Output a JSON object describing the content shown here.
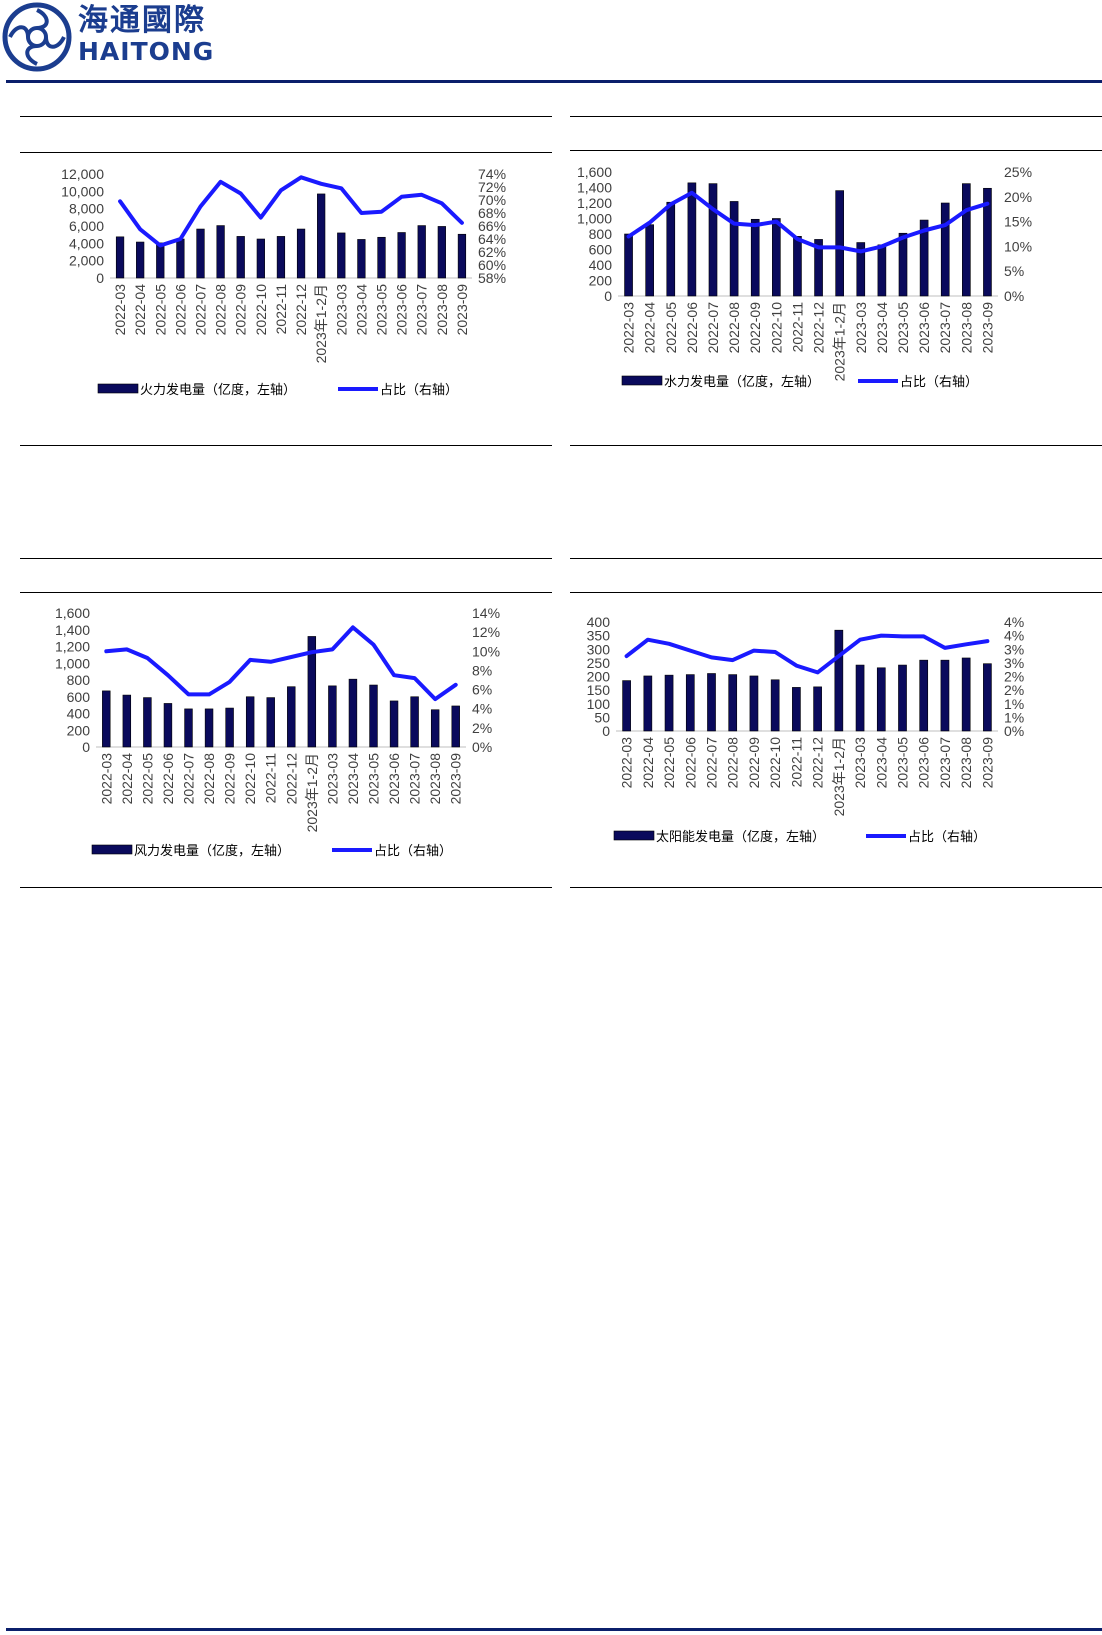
{
  "header": {
    "logo_cn": "海通國際",
    "logo_en": "HAITONG"
  },
  "charts": [
    {
      "id": "thermal",
      "chart_data": {
        "type": "bar",
        "categories": [
          "2022-03",
          "2022-04",
          "2022-05",
          "2022-06",
          "2022-07",
          "2022-08",
          "2022-09",
          "2022-10",
          "2022-11",
          "2022-12",
          "2023年1-2月",
          "2023-03",
          "2023-04",
          "2023-05",
          "2023-06",
          "2023-07",
          "2023-08",
          "2023-09"
        ],
        "series": [
          {
            "name": "火力发电量（亿度，左轴）",
            "axis": "left",
            "type": "bar",
            "values": [
              4750,
              4150,
              4050,
              4500,
              5650,
              6050,
              4800,
              4500,
              4800,
              5650,
              9700,
              5200,
              4450,
              4700,
              5250,
              6050,
              5950,
              5050
            ]
          },
          {
            "name": "占比（右轴）",
            "axis": "right",
            "type": "line",
            "values": [
              69.8,
              65.5,
              63.0,
              64.0,
              69.0,
              72.8,
              71.0,
              67.3,
              71.5,
              73.5,
              72.5,
              71.8,
              68.0,
              68.2,
              70.5,
              70.8,
              69.5,
              66.5
            ]
          }
        ],
        "left_axis": {
          "min": 0,
          "max": 12000,
          "step": 2000,
          "tick_labels": [
            "0",
            "2,000",
            "4,000",
            "6,000",
            "8,000",
            "10,000",
            "12,000"
          ]
        },
        "right_axis": {
          "min": 58,
          "max": 74,
          "step": 2,
          "tick_labels": [
            "58%",
            "60%",
            "62%",
            "64%",
            "66%",
            "68%",
            "70%",
            "72%",
            "74%"
          ]
        },
        "legend": "bottom",
        "colors": {
          "bar": "#0a0a5c",
          "line": "#1a1aff"
        }
      }
    },
    {
      "id": "hydro",
      "chart_data": {
        "type": "bar",
        "categories": [
          "2022-03",
          "2022-04",
          "2022-05",
          "2022-06",
          "2022-07",
          "2022-08",
          "2022-09",
          "2022-10",
          "2022-11",
          "2022-12",
          "2023年1-2月",
          "2023-03",
          "2023-04",
          "2023-05",
          "2023-06",
          "2023-07",
          "2023-08",
          "2023-09"
        ],
        "series": [
          {
            "name": "水力发电量（亿度，左轴）",
            "axis": "left",
            "type": "bar",
            "values": [
              800,
              920,
              1210,
              1460,
              1450,
              1220,
              990,
              1000,
              770,
              730,
              1360,
              690,
              660,
              810,
              980,
              1200,
              1450,
              1390
            ]
          },
          {
            "name": "占比（右轴）",
            "axis": "right",
            "type": "line",
            "values": [
              12,
              14.8,
              18.5,
              20.8,
              17.5,
              14.6,
              14.3,
              15.0,
              11.5,
              9.8,
              9.8,
              9.0,
              10.0,
              11.8,
              13.2,
              14.3,
              17.3,
              18.6
            ]
          }
        ],
        "left_axis": {
          "min": 0,
          "max": 1600,
          "step": 200,
          "tick_labels": [
            "0",
            "200",
            "400",
            "600",
            "800",
            "1,000",
            "1,200",
            "1,400",
            "1,600"
          ]
        },
        "right_axis": {
          "min": 0,
          "max": 25,
          "step": 5,
          "tick_labels": [
            "0%",
            "5%",
            "10%",
            "15%",
            "20%",
            "25%"
          ]
        },
        "legend": "bottom",
        "colors": {
          "bar": "#0a0a5c",
          "line": "#1a1aff"
        }
      }
    },
    {
      "id": "wind",
      "chart_data": {
        "type": "bar",
        "categories": [
          "2022-03",
          "2022-04",
          "2022-05",
          "2022-06",
          "2022-07",
          "2022-08",
          "2022-09",
          "2022-10",
          "2022-11",
          "2022-12",
          "2023年1-2月",
          "2023-03",
          "2023-04",
          "2023-05",
          "2023-06",
          "2023-07",
          "2023-08",
          "2023-09"
        ],
        "series": [
          {
            "name": "风力发电量（亿度，左轴）",
            "axis": "left",
            "type": "bar",
            "values": [
              670,
              620,
              590,
              520,
              455,
              455,
              465,
              600,
              590,
              720,
              1320,
              730,
              810,
              740,
              550,
              600,
              445,
              490
            ]
          },
          {
            "name": "占比（右轴）",
            "axis": "right",
            "type": "line",
            "values": [
              10.0,
              10.2,
              9.3,
              7.5,
              5.5,
              5.5,
              6.8,
              9.1,
              8.9,
              9.4,
              9.9,
              10.2,
              12.5,
              10.7,
              7.5,
              7.2,
              5.0,
              6.5
            ]
          }
        ],
        "left_axis": {
          "min": 0,
          "max": 1600,
          "step": 200,
          "tick_labels": [
            "0",
            "200",
            "400",
            "600",
            "800",
            "1,000",
            "1,200",
            "1,400",
            "1,600"
          ]
        },
        "right_axis": {
          "min": 0,
          "max": 14,
          "step": 2,
          "tick_labels": [
            "0%",
            "2%",
            "4%",
            "6%",
            "8%",
            "10%",
            "12%",
            "14%"
          ]
        },
        "legend": "bottom",
        "colors": {
          "bar": "#0a0a5c",
          "line": "#1a1aff"
        }
      }
    },
    {
      "id": "solar",
      "chart_data": {
        "type": "bar",
        "categories": [
          "2022-03",
          "2022-04",
          "2022-05",
          "2022-06",
          "2022-07",
          "2022-08",
          "2022-09",
          "2022-10",
          "2022-11",
          "2022-12",
          "2023年1-2月",
          "2023-03",
          "2023-04",
          "2023-05",
          "2023-06",
          "2023-07",
          "2023-08",
          "2023-09"
        ],
        "series": [
          {
            "name": "太阳能发电量（亿度，左轴）",
            "axis": "left",
            "type": "bar",
            "values": [
              185,
              202,
              205,
              207,
              211,
              207,
              202,
              188,
              160,
              162,
              370,
              242,
              232,
              242,
              260,
              260,
              268,
              247
            ]
          },
          {
            "name": "占比（右轴）",
            "axis": "right",
            "type": "line",
            "values": [
              2.75,
              3.35,
              3.2,
              2.95,
              2.7,
              2.6,
              2.95,
              2.9,
              2.4,
              2.15,
              2.75,
              3.35,
              3.5,
              3.47,
              3.47,
              3.05,
              3.18,
              3.3
            ]
          }
        ],
        "left_axis": {
          "min": 0,
          "max": 400,
          "step": 50,
          "tick_labels": [
            "0",
            "50",
            "100",
            "150",
            "200",
            "250",
            "300",
            "350",
            "400"
          ]
        },
        "right_axis": {
          "min": 0,
          "max": 4,
          "step": 0.5,
          "tick_labels": [
            "0%",
            "1%",
            "1%",
            "2%",
            "2%",
            "3%",
            "3%",
            "4%",
            "4%"
          ]
        },
        "legend": "bottom",
        "colors": {
          "bar": "#0a0a5c",
          "line": "#1a1aff"
        }
      }
    }
  ]
}
